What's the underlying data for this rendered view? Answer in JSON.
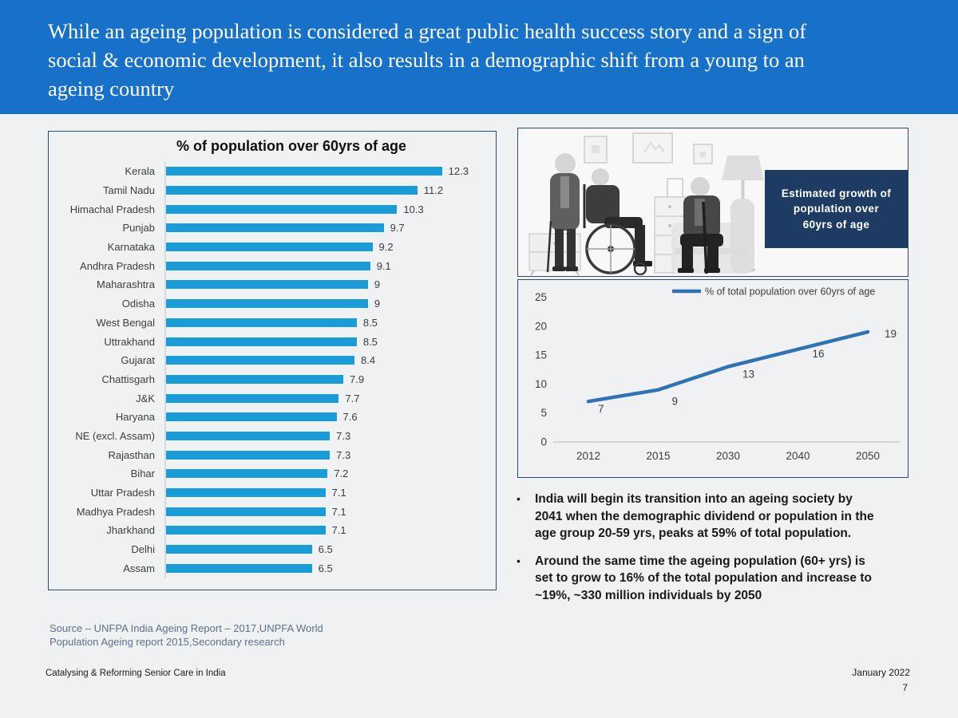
{
  "colors": {
    "header_bg": "#1771c8",
    "panel_border": "#2c4a6e",
    "bar_fill": "#199cd8",
    "line_stroke": "#2e74b5",
    "navy_box": "#1e3c63",
    "source_text": "#5b7288"
  },
  "header": {
    "title": "While an ageing population is considered a great public health success story and a sign of\nsocial & economic development, it also results in a demographic shift from a young to an\nageing country"
  },
  "illustration": {
    "caption": "Estimated growth of\npopulation over\n60yrs of age",
    "description": "grayscale illustration of three elderly people (standing woman with cane, man in wheelchair, seated man with cane) in a living room"
  },
  "bullets": [
    "India will begin its transition into an ageing society by\n2041 when the demographic dividend or population in the\nage group 20-59 yrs, peaks at 59% of total population.",
    "Around the same time the ageing population (60+ yrs) is\nset to grow to 16% of the total population and increase to\n~19%, ~330 million individuals by 2050"
  ],
  "footer": {
    "source": "Source – UNFPA India Ageing Report – 2017,UNPFA World\nPopulation Ageing report 2015,Secondary research",
    "left": "Catalysing & Reforming Senior Care in India",
    "date": "January 2022",
    "page": "7"
  },
  "chart_data": [
    {
      "type": "bar",
      "orientation": "horizontal",
      "title": "% of population over 60yrs of age",
      "categories": [
        "Kerala",
        "Tamil Nadu",
        "Himachal Pradesh",
        "Punjab",
        "Karnataka",
        "Andhra Pradesh",
        "Maharashtra",
        "Odisha",
        "West Bengal",
        "Uttrakhand",
        "Gujarat",
        "Chattisgarh",
        "J&K",
        "Haryana",
        "NE (excl. Assam)",
        "Rajasthan",
        "Bihar",
        "Uttar Pradesh",
        "Madhya Pradesh",
        "Jharkhand",
        "Delhi",
        "Assam"
      ],
      "values": [
        12.3,
        11.2,
        10.3,
        9.7,
        9.2,
        9.1,
        9,
        9,
        8.5,
        8.5,
        8.4,
        7.9,
        7.7,
        7.6,
        7.3,
        7.3,
        7.2,
        7.1,
        7.1,
        7.1,
        6.5,
        6.5
      ],
      "xlim": [
        0,
        14
      ],
      "value_labels": true,
      "unit": "%"
    },
    {
      "type": "line",
      "legend": "% of total population over 60yrs of age",
      "categories": [
        "2012",
        "2015",
        "2030",
        "2040",
        "2050"
      ],
      "values": [
        7,
        9,
        13,
        16,
        19
      ],
      "ylim": [
        0,
        25
      ],
      "yticks": [
        0,
        5,
        10,
        15,
        20,
        25
      ],
      "legend_position": "top",
      "grid": "baseline-only",
      "value_labels": true
    }
  ]
}
